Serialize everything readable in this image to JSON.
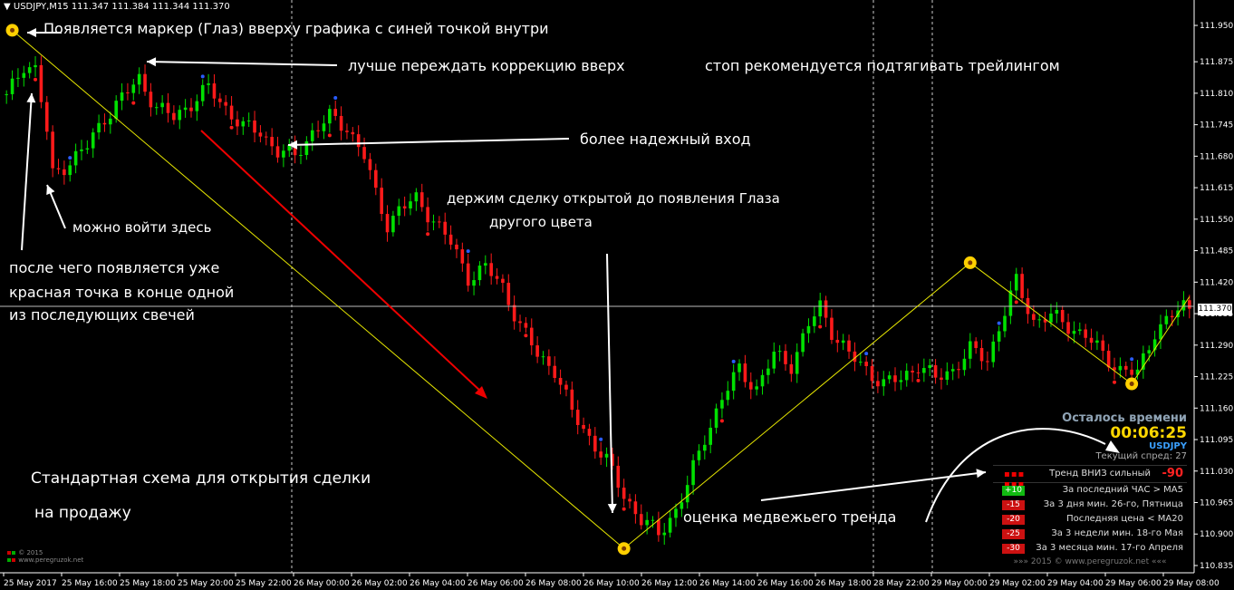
{
  "header": {
    "symbol_line": "USDJPY,M15  111.347 111.384 111.344 111.370"
  },
  "annotations": {
    "marker_top": "Появляется маркер (Глаз) вверху графика с синей точкой внутри",
    "wait_correction": "лучше переждать коррекцию вверх",
    "stop_trailing": "стоп рекомендуется подтягивать трейлингом",
    "reliable_entry": "более надежный вход",
    "hold_line1": "держим сделку открытой до появления Глаза",
    "hold_line2": "другого цвета",
    "enter_here": "можно войти здесь",
    "after_line1": "после чего появляется уже",
    "after_line2": "красная точка в конце одной",
    "after_line3": "из последующих свечей",
    "standard_line1": "Стандартная схема для открытия сделки",
    "standard_line2": "на продажу",
    "bear_estimate": "оценка медвежьего тренда"
  },
  "panel": {
    "remaining_label": "Осталось времени",
    "timer": "00:06:25",
    "symbol": "USDJPY",
    "spread": "Текущий спред: 27",
    "trend_label": "Тренд ВНИЗ сильный",
    "trend_value": "-90",
    "rows": [
      {
        "badge": "+10",
        "color": "#11bb11",
        "text": "За последний ЧАС > MA5"
      },
      {
        "badge": "-15",
        "color": "#cc1111",
        "text": "За 3 дня мин. 26-го, Пятница"
      },
      {
        "badge": "-20",
        "color": "#cc1111",
        "text": "Последняя цена < MA20"
      },
      {
        "badge": "-25",
        "color": "#cc1111",
        "text": "За 3 недели мин. 18-го Мая"
      },
      {
        "badge": "-30",
        "color": "#cc1111",
        "text": "За 3 месяца мин. 17-го Апреля"
      }
    ],
    "footer": "»»»   2015  ©  www.peregruzok.net   «««"
  },
  "logo": {
    "line1": "© 2015",
    "line2": "www.peregruzok.net"
  },
  "chart_data": {
    "type": "candlestick",
    "symbol": "USDJPY",
    "timeframe": "M15",
    "last_price": "111.370",
    "y_ticks": [
      "111.950",
      "111.875",
      "111.810",
      "111.745",
      "111.680",
      "111.615",
      "111.550",
      "111.485",
      "111.420",
      "111.355",
      "111.290",
      "111.225",
      "111.160",
      "111.095",
      "111.030",
      "110.965",
      "110.900",
      "110.835"
    ],
    "x_ticks": [
      "25 May 2017",
      "25 May 16:00",
      "25 May 18:00",
      "25 May 20:00",
      "25 May 22:00",
      "26 May 00:00",
      "26 May 02:00",
      "26 May 04:00",
      "26 May 06:00",
      "26 May 08:00",
      "26 May 10:00",
      "26 May 12:00",
      "26 May 14:00",
      "26 May 16:00",
      "26 May 18:00",
      "28 May 22:00",
      "29 May 00:00",
      "29 May 02:00",
      "29 May 04:00",
      "29 May 06:00",
      "29 May 08:00"
    ],
    "ylim": [
      110.82,
      111.98
    ],
    "close_anchors": [
      [
        0,
        111.8
      ],
      [
        3,
        111.87
      ],
      [
        5,
        111.86
      ],
      [
        7,
        111.73
      ],
      [
        8,
        111.64
      ],
      [
        10,
        111.66
      ],
      [
        14,
        111.7
      ],
      [
        17,
        111.76
      ],
      [
        20,
        111.8
      ],
      [
        23,
        111.84
      ],
      [
        26,
        111.78
      ],
      [
        29,
        111.76
      ],
      [
        32,
        111.79
      ],
      [
        35,
        111.82
      ],
      [
        38,
        111.78
      ],
      [
        41,
        111.74
      ],
      [
        44,
        111.73
      ],
      [
        47,
        111.69
      ],
      [
        50,
        111.68
      ],
      [
        53,
        111.73
      ],
      [
        56,
        111.76
      ],
      [
        59,
        111.74
      ],
      [
        62,
        111.68
      ],
      [
        64,
        111.6
      ],
      [
        66,
        111.54
      ],
      [
        68,
        111.57
      ],
      [
        71,
        111.59
      ],
      [
        74,
        111.55
      ],
      [
        77,
        111.5
      ],
      [
        80,
        111.43
      ],
      [
        83,
        111.45
      ],
      [
        86,
        111.41
      ],
      [
        89,
        111.33
      ],
      [
        92,
        111.27
      ],
      [
        95,
        111.24
      ],
      [
        98,
        111.15
      ],
      [
        101,
        111.1
      ],
      [
        104,
        111.05
      ],
      [
        107,
        110.98
      ],
      [
        110,
        110.93
      ],
      [
        113,
        110.9
      ],
      [
        116,
        110.95
      ],
      [
        118,
        111.0
      ],
      [
        121,
        111.1
      ],
      [
        124,
        111.18
      ],
      [
        127,
        111.24
      ],
      [
        130,
        111.2
      ],
      [
        133,
        111.27
      ],
      [
        136,
        111.25
      ],
      [
        139,
        111.33
      ],
      [
        141,
        111.37
      ],
      [
        143,
        111.32
      ],
      [
        146,
        111.27
      ],
      [
        149,
        111.24
      ],
      [
        152,
        111.21
      ],
      [
        155,
        111.22
      ],
      [
        158,
        111.25
      ],
      [
        161,
        111.22
      ],
      [
        164,
        111.24
      ],
      [
        167,
        111.28
      ],
      [
        170,
        111.26
      ],
      [
        173,
        111.36
      ],
      [
        175,
        111.42
      ],
      [
        178,
        111.34
      ],
      [
        181,
        111.35
      ],
      [
        184,
        111.33
      ],
      [
        187,
        111.31
      ],
      [
        190,
        111.27
      ],
      [
        193,
        111.24
      ],
      [
        196,
        111.23
      ],
      [
        199,
        111.32
      ],
      [
        202,
        111.35
      ],
      [
        204,
        111.37
      ]
    ],
    "eye_markers": [
      {
        "index": 1,
        "price": 111.94,
        "color": "yellow"
      },
      {
        "index": 107,
        "price": 110.87,
        "color": "yellow"
      },
      {
        "index": 167,
        "price": 111.46,
        "color": "yellow"
      },
      {
        "index": 195,
        "price": 111.21,
        "color": "yellow"
      }
    ]
  }
}
